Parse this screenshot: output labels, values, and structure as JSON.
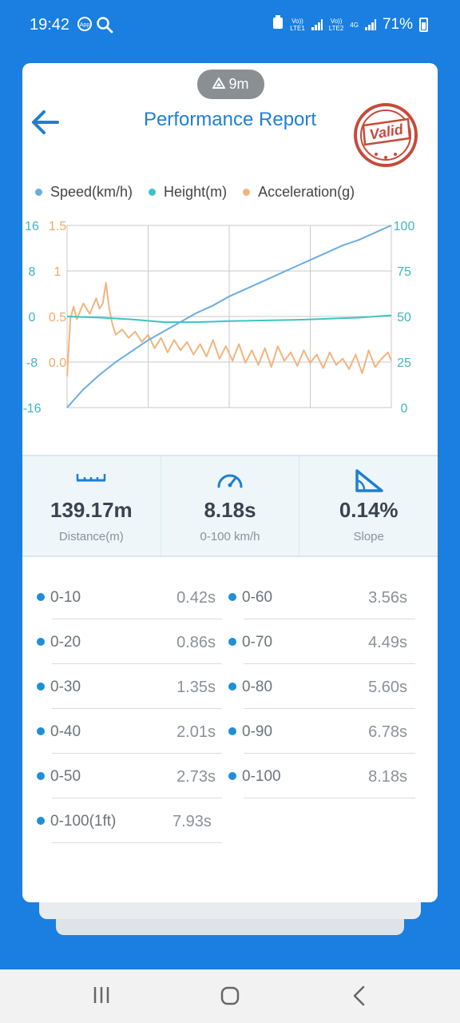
{
  "status_bar": {
    "time": "19:42",
    "sim1_label": "Vo))\nLTE1",
    "sim2_label": "Vo))\nLTE2",
    "network": "4G",
    "battery": "71%"
  },
  "header": {
    "altitude_badge": "9m",
    "title": "Performance Report",
    "stamp_text": "Valid"
  },
  "legend": [
    {
      "name": "Speed(km/h)",
      "color": "#6aaee0"
    },
    {
      "name": "Height(m)",
      "color": "#3cc3c3"
    },
    {
      "name": "Acceleration(g)",
      "color": "#f2b47e"
    }
  ],
  "chart_data": {
    "type": "line",
    "left_axis_height_ticks": [
      "16",
      "8",
      "0",
      "-8",
      "-16"
    ],
    "left_axis_accel_ticks": [
      "1.5",
      "1",
      "0.5",
      "0.0"
    ],
    "right_axis_speed_ticks": [
      "100",
      "75",
      "50",
      "25",
      "0"
    ],
    "series": [
      {
        "name": "Speed(km/h)",
        "color": "#6aaee0",
        "x": [
          0,
          0.05,
          0.1,
          0.15,
          0.2,
          0.25,
          0.3,
          0.35,
          0.4,
          0.45,
          0.5,
          0.55,
          0.6,
          0.65,
          0.7,
          0.75,
          0.8,
          0.85,
          0.9,
          0.95,
          1.0
        ],
        "values": [
          0,
          10,
          18,
          25,
          31,
          37,
          42,
          47,
          52,
          56,
          61,
          65,
          69,
          73,
          77,
          81,
          85,
          89,
          92,
          96,
          100
        ]
      },
      {
        "name": "Height(m)",
        "color": "#3cc3c3",
        "x": [
          0,
          0.1,
          0.2,
          0.3,
          0.4,
          0.5,
          0.6,
          0.7,
          0.8,
          0.9,
          1.0
        ],
        "values": [
          0.0,
          -0.2,
          -0.5,
          -1.0,
          -1.0,
          -0.8,
          -0.7,
          -0.6,
          -0.4,
          -0.2,
          0.2
        ]
      },
      {
        "name": "Acceleration(g)",
        "color": "#f2b47e",
        "x": [
          0,
          0.01,
          0.02,
          0.03,
          0.05,
          0.07,
          0.09,
          0.1,
          0.11,
          0.12,
          0.13,
          0.14,
          0.15,
          0.17,
          0.19,
          0.21,
          0.23,
          0.25,
          0.27,
          0.29,
          0.31,
          0.33,
          0.35,
          0.37,
          0.39,
          0.41,
          0.43,
          0.45,
          0.47,
          0.49,
          0.51,
          0.53,
          0.55,
          0.57,
          0.59,
          0.61,
          0.63,
          0.65,
          0.67,
          0.69,
          0.71,
          0.73,
          0.75,
          0.77,
          0.79,
          0.81,
          0.83,
          0.85,
          0.87,
          0.89,
          0.91,
          0.93,
          0.95,
          0.97,
          0.99,
          1.0
        ],
        "values": [
          0.05,
          0.6,
          0.72,
          0.6,
          0.75,
          0.65,
          0.8,
          0.7,
          0.75,
          0.95,
          0.7,
          0.55,
          0.45,
          0.5,
          0.42,
          0.48,
          0.38,
          0.45,
          0.32,
          0.42,
          0.28,
          0.4,
          0.3,
          0.38,
          0.26,
          0.36,
          0.24,
          0.4,
          0.22,
          0.34,
          0.2,
          0.36,
          0.18,
          0.3,
          0.16,
          0.32,
          0.14,
          0.34,
          0.2,
          0.28,
          0.15,
          0.3,
          0.18,
          0.26,
          0.13,
          0.28,
          0.16,
          0.22,
          0.12,
          0.26,
          0.08,
          0.3,
          0.14,
          0.22,
          0.28,
          0.2
        ]
      }
    ],
    "ylim_speed": [
      0,
      100
    ],
    "ylim_height": [
      -16,
      16
    ],
    "ylim_accel": [
      -0.25,
      1.5
    ],
    "grid": true
  },
  "stats": [
    {
      "value": "139.17m",
      "label": "Distance(m)",
      "icon": "ruler-icon"
    },
    {
      "value": "8.18s",
      "label": "0-100 km/h",
      "icon": "speedometer-icon"
    },
    {
      "value": "0.14%",
      "label": "Slope",
      "icon": "slope-icon"
    }
  ],
  "times_left": [
    {
      "label": "0-10",
      "value": "0.42s"
    },
    {
      "label": "0-20",
      "value": "0.86s"
    },
    {
      "label": "0-30",
      "value": "1.35s"
    },
    {
      "label": "0-40",
      "value": "2.01s"
    },
    {
      "label": "0-50",
      "value": "2.73s"
    },
    {
      "label": "0-100(1ft)",
      "value": "7.93s"
    }
  ],
  "times_right": [
    {
      "label": "0-60",
      "value": "3.56s"
    },
    {
      "label": "0-70",
      "value": "4.49s"
    },
    {
      "label": "0-80",
      "value": "5.60s"
    },
    {
      "label": "0-90",
      "value": "6.78s"
    },
    {
      "label": "0-100",
      "value": "8.18s"
    }
  ]
}
